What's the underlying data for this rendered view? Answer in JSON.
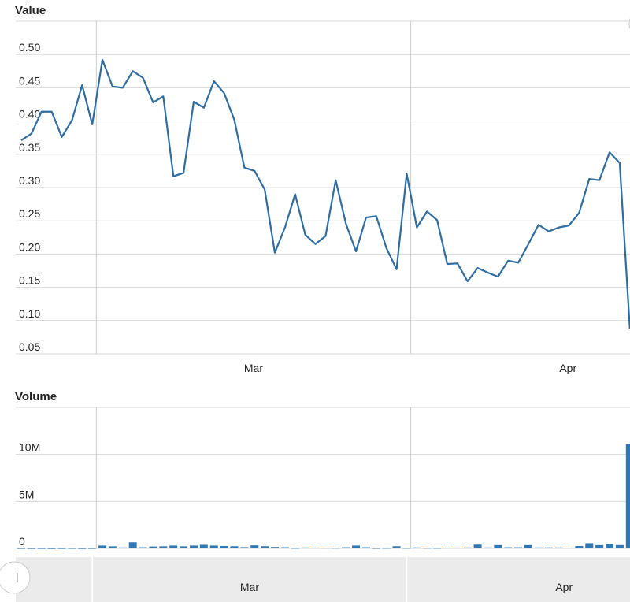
{
  "chart_data": [
    {
      "type": "line",
      "title": "Value",
      "color": "#2e6da4",
      "categories": [
        null,
        null,
        null,
        null,
        null,
        null,
        null,
        null,
        null,
        null,
        null,
        null,
        null,
        null,
        null,
        null,
        null,
        null,
        null,
        null,
        null,
        null,
        null,
        null,
        null,
        null,
        null,
        null,
        null,
        null,
        null,
        null,
        null,
        null,
        null,
        null,
        null,
        null,
        null,
        null,
        null,
        null,
        null,
        null,
        null,
        null,
        null,
        null,
        null,
        null,
        null,
        null,
        null,
        null,
        null,
        null,
        null,
        null,
        null,
        null,
        null
      ],
      "values": [
        0.371,
        0.381,
        0.414,
        0.414,
        0.376,
        0.401,
        0.454,
        0.395,
        0.492,
        0.452,
        0.45,
        0.475,
        0.465,
        0.428,
        0.437,
        0.317,
        0.322,
        0.429,
        0.42,
        0.46,
        0.442,
        0.402,
        0.33,
        0.325,
        0.297,
        0.202,
        0.24,
        0.29,
        0.229,
        0.215,
        0.227,
        0.311,
        0.246,
        0.204,
        0.255,
        0.257,
        0.209,
        0.177,
        0.321,
        0.24,
        0.264,
        0.251,
        0.185,
        0.186,
        0.159,
        0.179,
        0.172,
        0.166,
        0.19,
        0.187,
        0.215,
        0.244,
        0.234,
        0.24,
        0.243,
        0.262,
        0.313,
        0.311,
        0.353,
        0.337,
        0.088
      ],
      "ylim": [
        0.05,
        0.55
      ],
      "yticks": [
        0.05,
        {
          "value": 0.1,
          "label": "0.10"
        },
        0.15,
        {
          "value": 0.2,
          "label": "0.20"
        },
        0.25,
        {
          "value": 0.3,
          "label": "0.30"
        },
        0.35,
        {
          "value": 0.4,
          "label": "0.40"
        },
        0.45,
        {
          "value": 0.5,
          "label": "0.50"
        }
      ],
      "xticks": [
        {
          "value": 7.4,
          "label": "Mar"
        },
        {
          "value": 38.4,
          "label": "Apr"
        }
      ],
      "grid": true
    },
    {
      "type": "bar",
      "title": "Volume",
      "color": "#2f78b5",
      "categories": [
        null,
        null,
        null,
        null,
        null,
        null,
        null,
        null,
        null,
        null,
        null,
        null,
        null,
        null,
        null,
        null,
        null,
        null,
        null,
        null,
        null,
        null,
        null,
        null,
        null,
        null,
        null,
        null,
        null,
        null,
        null,
        null,
        null,
        null,
        null,
        null,
        null,
        null,
        null,
        null,
        null,
        null,
        null,
        null,
        null,
        null,
        null,
        null,
        null,
        null,
        null,
        null,
        null,
        null,
        null,
        null,
        null,
        null,
        null,
        null,
        null
      ],
      "values": [
        20000,
        15000,
        18000,
        12000,
        20000,
        25000,
        15000,
        20000,
        300000,
        220000,
        100000,
        650000,
        120000,
        200000,
        220000,
        300000,
        220000,
        300000,
        380000,
        300000,
        250000,
        230000,
        130000,
        320000,
        230000,
        150000,
        120000,
        40000,
        100000,
        90000,
        60000,
        50000,
        120000,
        300000,
        120000,
        30000,
        40000,
        230000,
        40000,
        100000,
        50000,
        40000,
        80000,
        90000,
        100000,
        400000,
        100000,
        350000,
        120000,
        120000,
        350000,
        100000,
        100000,
        100000,
        80000,
        250000,
        550000,
        350000,
        450000,
        350000,
        11100000
      ],
      "ylim": [
        0,
        15000000
      ],
      "yticks": [
        0,
        {
          "value": 5000000,
          "label": "5M"
        },
        {
          "value": 10000000,
          "label": "10M"
        }
      ],
      "xticks": [
        {
          "value": 7.4,
          "label": "Mar"
        },
        {
          "value": 38.4,
          "label": "Apr"
        }
      ],
      "grid": true
    }
  ]
}
